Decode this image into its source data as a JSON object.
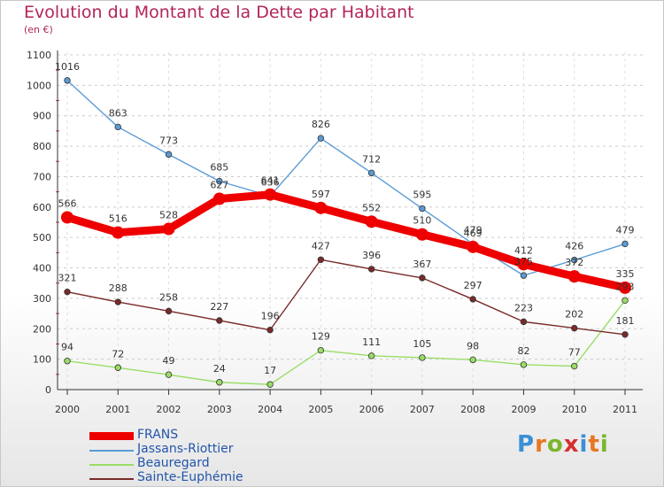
{
  "title": "Evolution du Montant de la Dette par Habitant",
  "subtitle": "(en €)",
  "logo": {
    "letters": [
      "P",
      "r",
      "o",
      "x",
      "i",
      "t",
      "i"
    ],
    "colors": [
      "#3a8fd6",
      "#e87722",
      "#7ab62e",
      "#d62f2f",
      "#3a8fd6",
      "#e87722",
      "#7ab62e"
    ]
  },
  "chart_data": {
    "type": "line",
    "x": [
      "2000",
      "2001",
      "2002",
      "2003",
      "2004",
      "2005",
      "2006",
      "2007",
      "2008",
      "2009",
      "2010",
      "2011"
    ],
    "ylim": [
      0,
      1100
    ],
    "yticks": [
      "0",
      "100",
      "200",
      "300",
      "400",
      "500",
      "600",
      "700",
      "800",
      "900",
      "1000",
      "1100"
    ],
    "grid": true,
    "legend_position": "bottom-left",
    "series": [
      {
        "name": "FRANS",
        "color": "#ee0000",
        "values": [
          566,
          516,
          528,
          627,
          641,
          597,
          552,
          510,
          469,
          412,
          372,
          335
        ]
      },
      {
        "name": "Jassans-Riottier",
        "color": "#5b9bd5",
        "values": [
          1016,
          863,
          773,
          685,
          636,
          826,
          712,
          595,
          479,
          375,
          426,
          479
        ]
      },
      {
        "name": "Beauregard",
        "color": "#99dd66",
        "values": [
          94,
          72,
          49,
          24,
          17,
          129,
          111,
          105,
          98,
          82,
          77,
          293
        ]
      },
      {
        "name": "Sainte-Euphémie",
        "color": "#7a2a2a",
        "values": [
          321,
          288,
          258,
          227,
          196,
          427,
          396,
          367,
          297,
          223,
          202,
          181
        ]
      }
    ]
  }
}
